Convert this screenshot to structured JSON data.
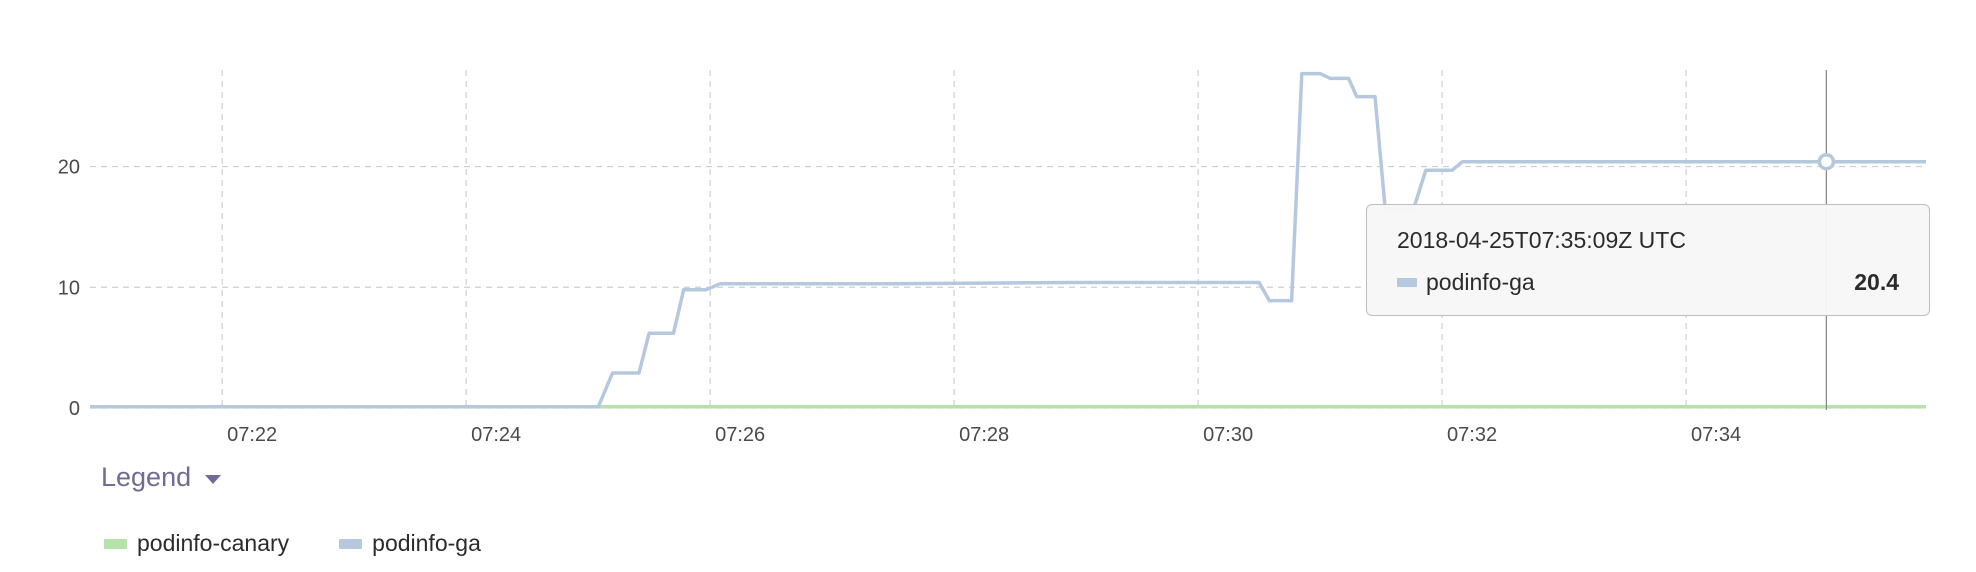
{
  "chart_data": {
    "type": "line",
    "xlabel": "",
    "ylabel": "",
    "ylim": [
      0,
      28
    ],
    "xlim": [
      "07:20:55",
      "07:35:58"
    ],
    "y_ticks": [
      "0",
      "10",
      "20"
    ],
    "x_ticks": [
      "07:22",
      "07:24",
      "07:26",
      "07:28",
      "07:30",
      "07:32",
      "07:34"
    ],
    "grid": true,
    "series": [
      {
        "name": "podinfo-canary",
        "color": "#b5e3a9",
        "points": [
          [
            "07:20:55",
            0.1
          ],
          [
            "07:35:58",
            0.1
          ]
        ]
      },
      {
        "name": "podinfo-ga",
        "color": "#b6c8de",
        "points": [
          [
            "07:20:55",
            0.1
          ],
          [
            "07:25:05",
            0.1
          ],
          [
            "07:25:12",
            2.9
          ],
          [
            "07:25:25",
            2.9
          ],
          [
            "07:25:30",
            6.2
          ],
          [
            "07:25:42",
            6.2
          ],
          [
            "07:25:47",
            9.8
          ],
          [
            "07:25:58",
            9.8
          ],
          [
            "07:26:05",
            10.3
          ],
          [
            "07:27:30",
            10.3
          ],
          [
            "07:29:00",
            10.4
          ],
          [
            "07:30:30",
            10.4
          ],
          [
            "07:30:35",
            8.9
          ],
          [
            "07:30:46",
            8.9
          ],
          [
            "07:30:51",
            27.7
          ],
          [
            "07:31:00",
            27.7
          ],
          [
            "07:31:05",
            27.3
          ],
          [
            "07:31:14",
            27.3
          ],
          [
            "07:31:18",
            25.8
          ],
          [
            "07:31:27",
            25.8
          ],
          [
            "07:31:32",
            16.5
          ],
          [
            "07:31:46",
            16.5
          ],
          [
            "07:31:52",
            19.7
          ],
          [
            "07:32:05",
            19.7
          ],
          [
            "07:32:10",
            20.4
          ],
          [
            "07:34:00",
            20.4
          ],
          [
            "07:35:58",
            20.4
          ]
        ]
      }
    ],
    "cursor": {
      "time": "07:35:09",
      "series": "podinfo-ga",
      "value": 20.4
    }
  },
  "tooltip": {
    "timestamp": "2018-04-25T07:35:09Z UTC",
    "series_name": "podinfo-ga",
    "series_color": "#b6c8de",
    "value": "20.4"
  },
  "legend": {
    "toggle_label": "Legend",
    "items": [
      {
        "label": "podinfo-canary",
        "color": "#b5e3a9"
      },
      {
        "label": "podinfo-ga",
        "color": "#b6c8de"
      }
    ]
  }
}
